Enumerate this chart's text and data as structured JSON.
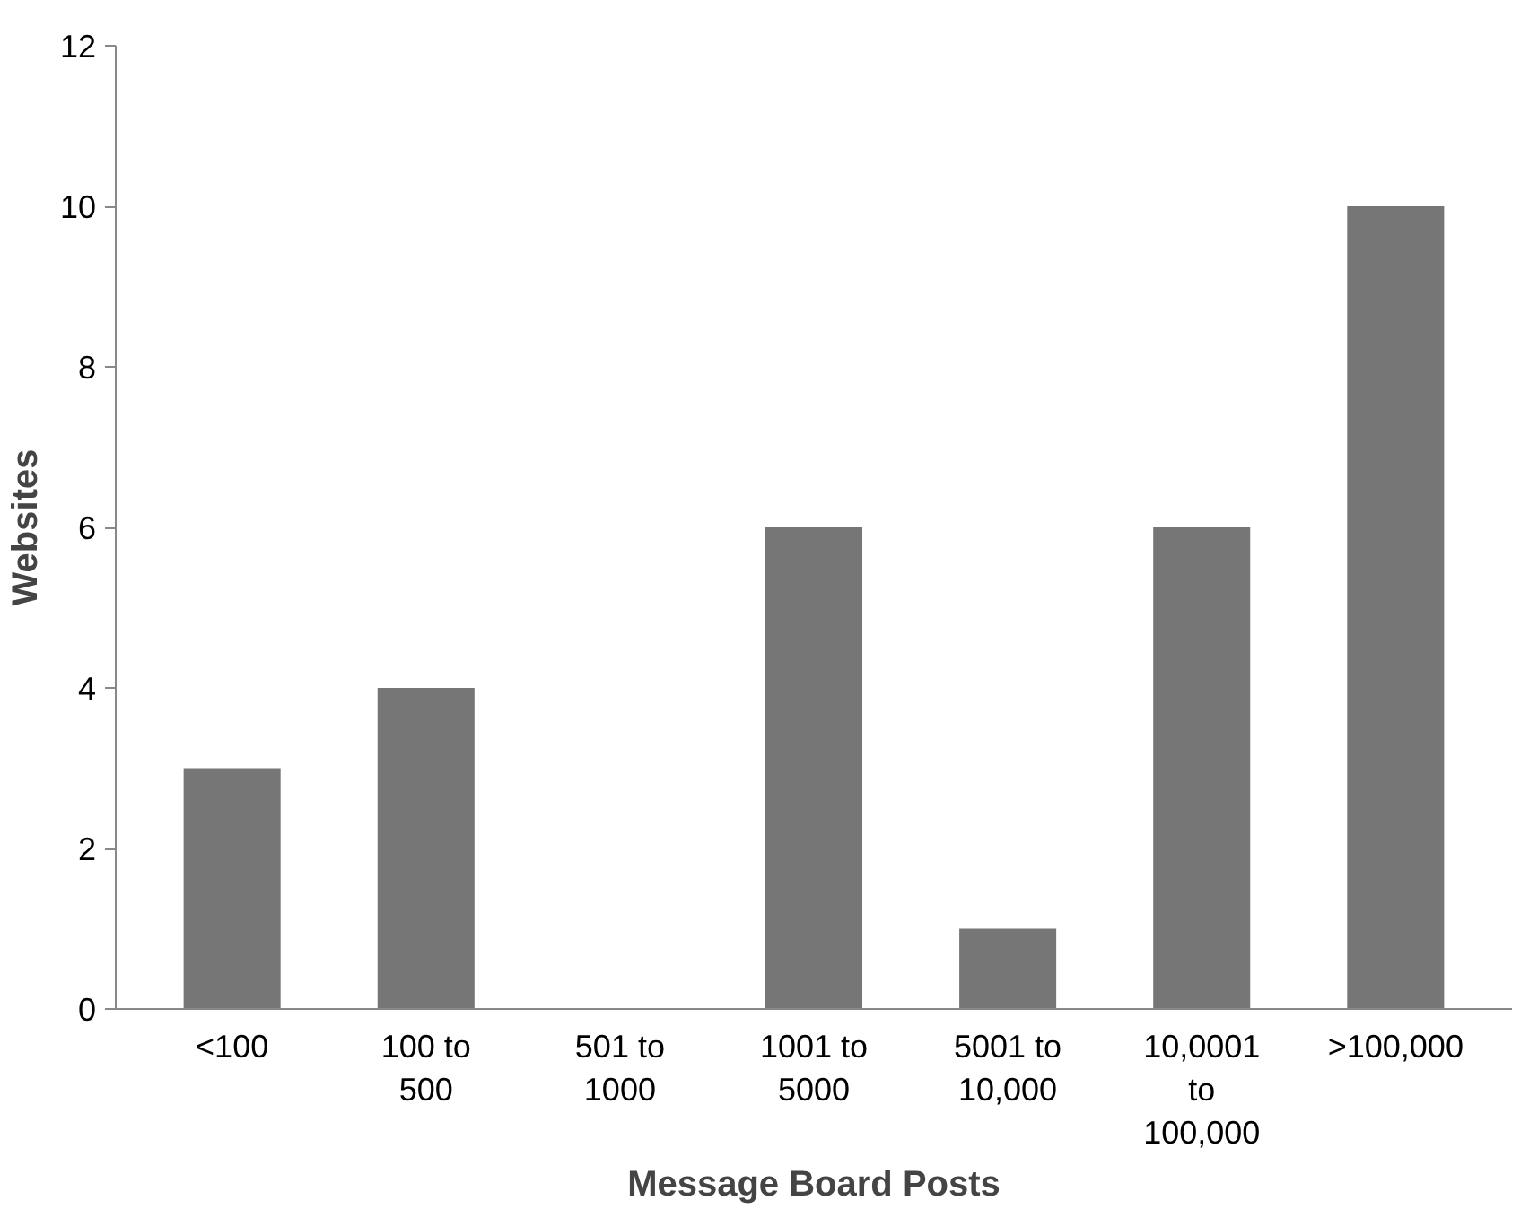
{
  "chart_data": {
    "type": "bar",
    "xlabel": "Message Board Posts",
    "ylabel": "Websites",
    "categories": [
      "<100",
      "100 to 500",
      "501 to 1000",
      "1001 to 5000",
      "5001 to 10,000",
      "10,0001 to 100,000",
      ">100,000"
    ],
    "values": [
      3,
      4,
      0,
      6,
      1,
      6,
      10
    ],
    "color": "#767676",
    "ylim": [
      0,
      12
    ],
    "yticks": [
      0,
      2,
      4,
      6,
      8,
      10,
      12
    ],
    "grid": false
  }
}
